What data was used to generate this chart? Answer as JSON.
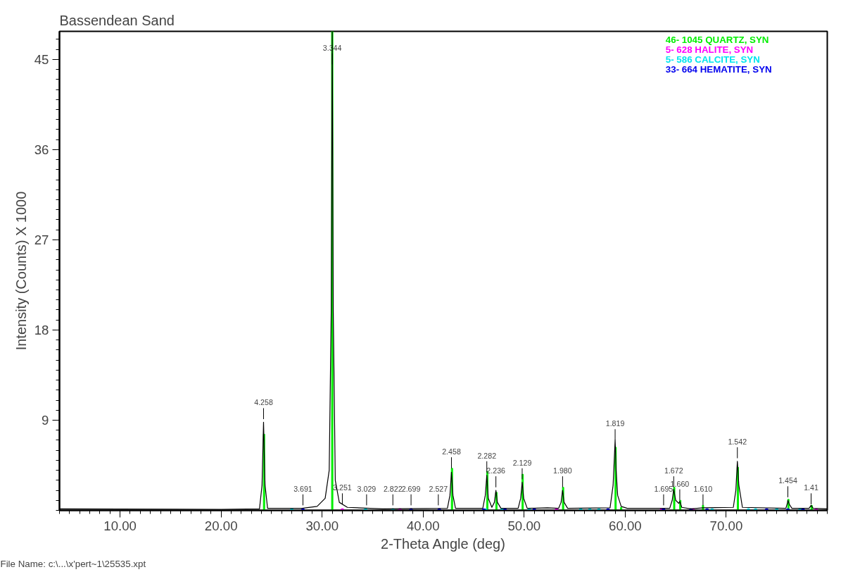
{
  "chart_data": {
    "type": "line",
    "title": "Bassendean Sand",
    "xlabel": "2-Theta Angle (deg)",
    "ylabel": "Intensity (Counts) X 1000",
    "xlim": [
      4,
      80
    ],
    "ylim": [
      0,
      47.8
    ],
    "xticks": [
      {
        "value": 10,
        "label": "10.00"
      },
      {
        "value": 20,
        "label": "20.00"
      },
      {
        "value": 30,
        "label": "30.00"
      },
      {
        "value": 40,
        "label": "40.00"
      },
      {
        "value": 50,
        "label": "50.00"
      },
      {
        "value": 60,
        "label": "60.00"
      },
      {
        "value": 70,
        "label": "70.00"
      }
    ],
    "yticks": [
      9,
      18,
      27,
      36,
      45
    ],
    "grid": false,
    "legend": "top right",
    "series": [
      {
        "color": "#000000",
        "x": [
          4,
          20,
          23.8,
          24.05,
          24.2,
          24.35,
          24.6,
          28,
          29.5,
          30.3,
          30.7,
          30.9,
          31.0,
          31.1,
          31.3,
          31.7,
          32.5,
          36,
          42.4,
          42.65,
          42.8,
          42.95,
          43.2,
          45.9,
          46.15,
          46.3,
          46.45,
          46.8,
          47.05,
          47.2,
          47.35,
          47.7,
          49.4,
          49.65,
          49.8,
          49.95,
          50.3,
          52.3,
          53.4,
          53.65,
          53.8,
          53.95,
          54.3,
          58.5,
          58.8,
          59.0,
          59.1,
          59.25,
          59.6,
          60.2,
          64.4,
          64.65,
          64.8,
          65.0,
          65.3,
          65.4,
          65.6,
          66.5,
          67.7,
          70.7,
          70.95,
          71.1,
          71.25,
          71.6,
          75.9,
          76.05,
          76.1,
          76.25,
          76.5,
          78.2,
          78.4,
          78.6,
          80
        ],
        "values": [
          0.15,
          0.1,
          0.15,
          2.5,
          8.8,
          2.5,
          0.2,
          0.2,
          0.4,
          1.2,
          4.0,
          20,
          47.8,
          20,
          3,
          0.8,
          0.3,
          0.15,
          0.2,
          1.5,
          3.8,
          1.5,
          0.2,
          0.2,
          1.5,
          3.5,
          1.2,
          0.3,
          0.8,
          2.0,
          0.8,
          0.2,
          0.2,
          1.2,
          2.8,
          1.2,
          0.2,
          0.25,
          0.2,
          0.8,
          2.0,
          0.8,
          0.2,
          0.25,
          2.5,
          7.0,
          4.0,
          1.5,
          0.4,
          0.2,
          0.2,
          1.0,
          2.1,
          1.0,
          0.7,
          0.9,
          0.3,
          0.15,
          0.25,
          0.3,
          2.0,
          4.9,
          2.5,
          0.3,
          0.2,
          0.7,
          1.0,
          0.6,
          0.2,
          0.2,
          0.5,
          0.2,
          0.15
        ]
      },
      {
        "type": "bar",
        "name": "46- 1045    QUARTZ, SYN",
        "color": "#00ee00",
        "x": [
          24.25,
          31.0,
          42.85,
          46.35,
          47.25,
          49.85,
          53.85,
          59.05,
          59.6,
          64.85,
          65.45,
          67.7,
          71.15,
          76.15,
          78.45
        ],
        "values": [
          7.6,
          47.8,
          4.2,
          3.9,
          1.8,
          3.6,
          2.3,
          6.3,
          0.3,
          2.3,
          1.0,
          0.5,
          4.3,
          1.1,
          0.5
        ]
      },
      {
        "type": "scatter",
        "name": "5- 628    HALITE, SYN",
        "color": "#ff00ff",
        "x": [
          32.0,
          37.7,
          53.2,
          63.6,
          66.7,
          78.9
        ],
        "values": [
          0,
          0,
          0,
          0,
          0,
          0
        ]
      },
      {
        "type": "scatter",
        "name": "5- 586    CALCITE, SYN",
        "color": "#00e5ee",
        "x": [
          27.0,
          34.3,
          37.0,
          46.2,
          47.8,
          50.5,
          55.6,
          56.5,
          57.4,
          68.6,
          72.2,
          72.9,
          75.0,
          77.3
        ],
        "values": [
          0,
          0,
          0,
          0,
          0,
          0,
          0,
          0,
          0,
          0,
          0,
          0,
          0,
          0
        ]
      },
      {
        "type": "scatter",
        "name": "33- 664    HEMATITE, SYN",
        "color": "#0000ee",
        "x": [
          28.1,
          38.8,
          41.6,
          46.0,
          48.1,
          51.0,
          58.3,
          63.8,
          66.5,
          68.1,
          74.0,
          76.1,
          77.6
        ],
        "values": [
          0,
          0,
          0,
          0,
          0,
          0,
          0,
          0,
          0,
          0,
          0,
          0,
          0
        ]
      }
    ],
    "annotations": [
      {
        "text": "4.258",
        "x": 24.2,
        "y": 9.1
      },
      {
        "text": "3.691",
        "x": 28.1,
        "y": 0.5
      },
      {
        "text": "3.344",
        "x": 31.0,
        "y": 44.5
      },
      {
        "text": "3.251",
        "x": 32.0,
        "y": 0.6
      },
      {
        "text": "3.029",
        "x": 34.4,
        "y": 0.5
      },
      {
        "text": "2.822",
        "x": 37.0,
        "y": 0.5
      },
      {
        "text": "2.699",
        "x": 38.8,
        "y": 0.5
      },
      {
        "text": "2.527",
        "x": 41.5,
        "y": 0.5
      },
      {
        "text": "2.458",
        "x": 42.8,
        "y": 4.2
      },
      {
        "text": "2.282",
        "x": 46.3,
        "y": 3.8
      },
      {
        "text": "2.236",
        "x": 47.2,
        "y": 2.3
      },
      {
        "text": "2.129",
        "x": 49.8,
        "y": 3.1
      },
      {
        "text": "1.980",
        "x": 53.8,
        "y": 2.3
      },
      {
        "text": "1.819",
        "x": 59.0,
        "y": 7.0
      },
      {
        "text": "1.695",
        "x": 63.8,
        "y": 0.5
      },
      {
        "text": "1.672",
        "x": 64.8,
        "y": 2.3
      },
      {
        "text": "1.660",
        "x": 65.4,
        "y": 1.0
      },
      {
        "text": "1.610",
        "x": 67.7,
        "y": 0.5
      },
      {
        "text": "1.542",
        "x": 71.1,
        "y": 5.2
      },
      {
        "text": "1.454",
        "x": 76.1,
        "y": 1.3
      },
      {
        "text": "1.41",
        "x": 78.4,
        "y": 0.6
      },
      "File Name:       c:\\...\\x'pert~1\\25535.xpt"
    ]
  }
}
